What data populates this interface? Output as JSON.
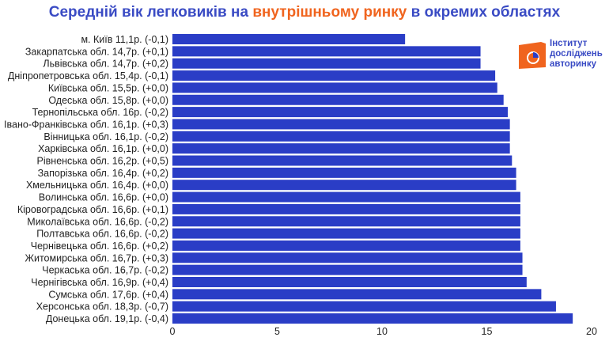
{
  "title": {
    "part1": "Середній вік легковиків на ",
    "highlight": "внутрішньому ринку",
    "part2": " в окремих областях"
  },
  "logo": {
    "line1": "Інститут",
    "line2": "досліджень",
    "line3": "авторинку"
  },
  "colors": {
    "bar": "#2a3dc6",
    "title": "#3a4bc4",
    "accent": "#f0641e"
  },
  "chart_data": {
    "type": "bar",
    "orientation": "horizontal",
    "categories": [
      "м. Київ 11,1р. (-0,1)",
      "Закарпатська обл. 14,7р. (+0,1)",
      "Львівська обл. 14,7р. (+0,2)",
      "Дніпропетровська обл. 15,4р. (-0,1)",
      "Київська обл. 15,5р. (+0,0)",
      "Одеська обл. 15,8р. (+0,0)",
      "Тернопільська обл. 16р. (-0,2)",
      "Івано-Франківська обл. 16,1р. (+0,3)",
      "Вінницька обл. 16,1р. (-0,2)",
      "Харківська обл. 16,1р. (+0,0)",
      "Рівненська обл. 16,2р. (+0,5)",
      "Запорізька обл. 16,4р. (+0,2)",
      "Хмельницька обл. 16,4р. (+0,0)",
      "Волинська обл. 16,6р. (+0,0)",
      "Кіровоградська обл. 16,6р. (+0,1)",
      "Миколаївська обл. 16,6р. (-0,2)",
      "Полтавська обл. 16,6р. (-0,2)",
      "Чернівецька обл. 16,6р. (+0,2)",
      "Житомирська обл. 16,7р. (+0,3)",
      "Черкаська обл. 16,7р. (-0,2)",
      "Чернігівська обл. 16,9р. (+0,4)",
      "Сумська обл. 17,6р. (+0,4)",
      "Херсонська обл. 18,3р. (-0,7)",
      "Донецька обл. 19,1р. (-0,4)"
    ],
    "values": [
      11.1,
      14.7,
      14.7,
      15.4,
      15.5,
      15.8,
      16.0,
      16.1,
      16.1,
      16.1,
      16.2,
      16.4,
      16.4,
      16.6,
      16.6,
      16.6,
      16.6,
      16.6,
      16.7,
      16.7,
      16.9,
      17.6,
      18.3,
      19.1
    ],
    "xlim": [
      0,
      20
    ],
    "xticks": [
      "0",
      "5",
      "10",
      "15",
      "20"
    ],
    "grid": false
  }
}
